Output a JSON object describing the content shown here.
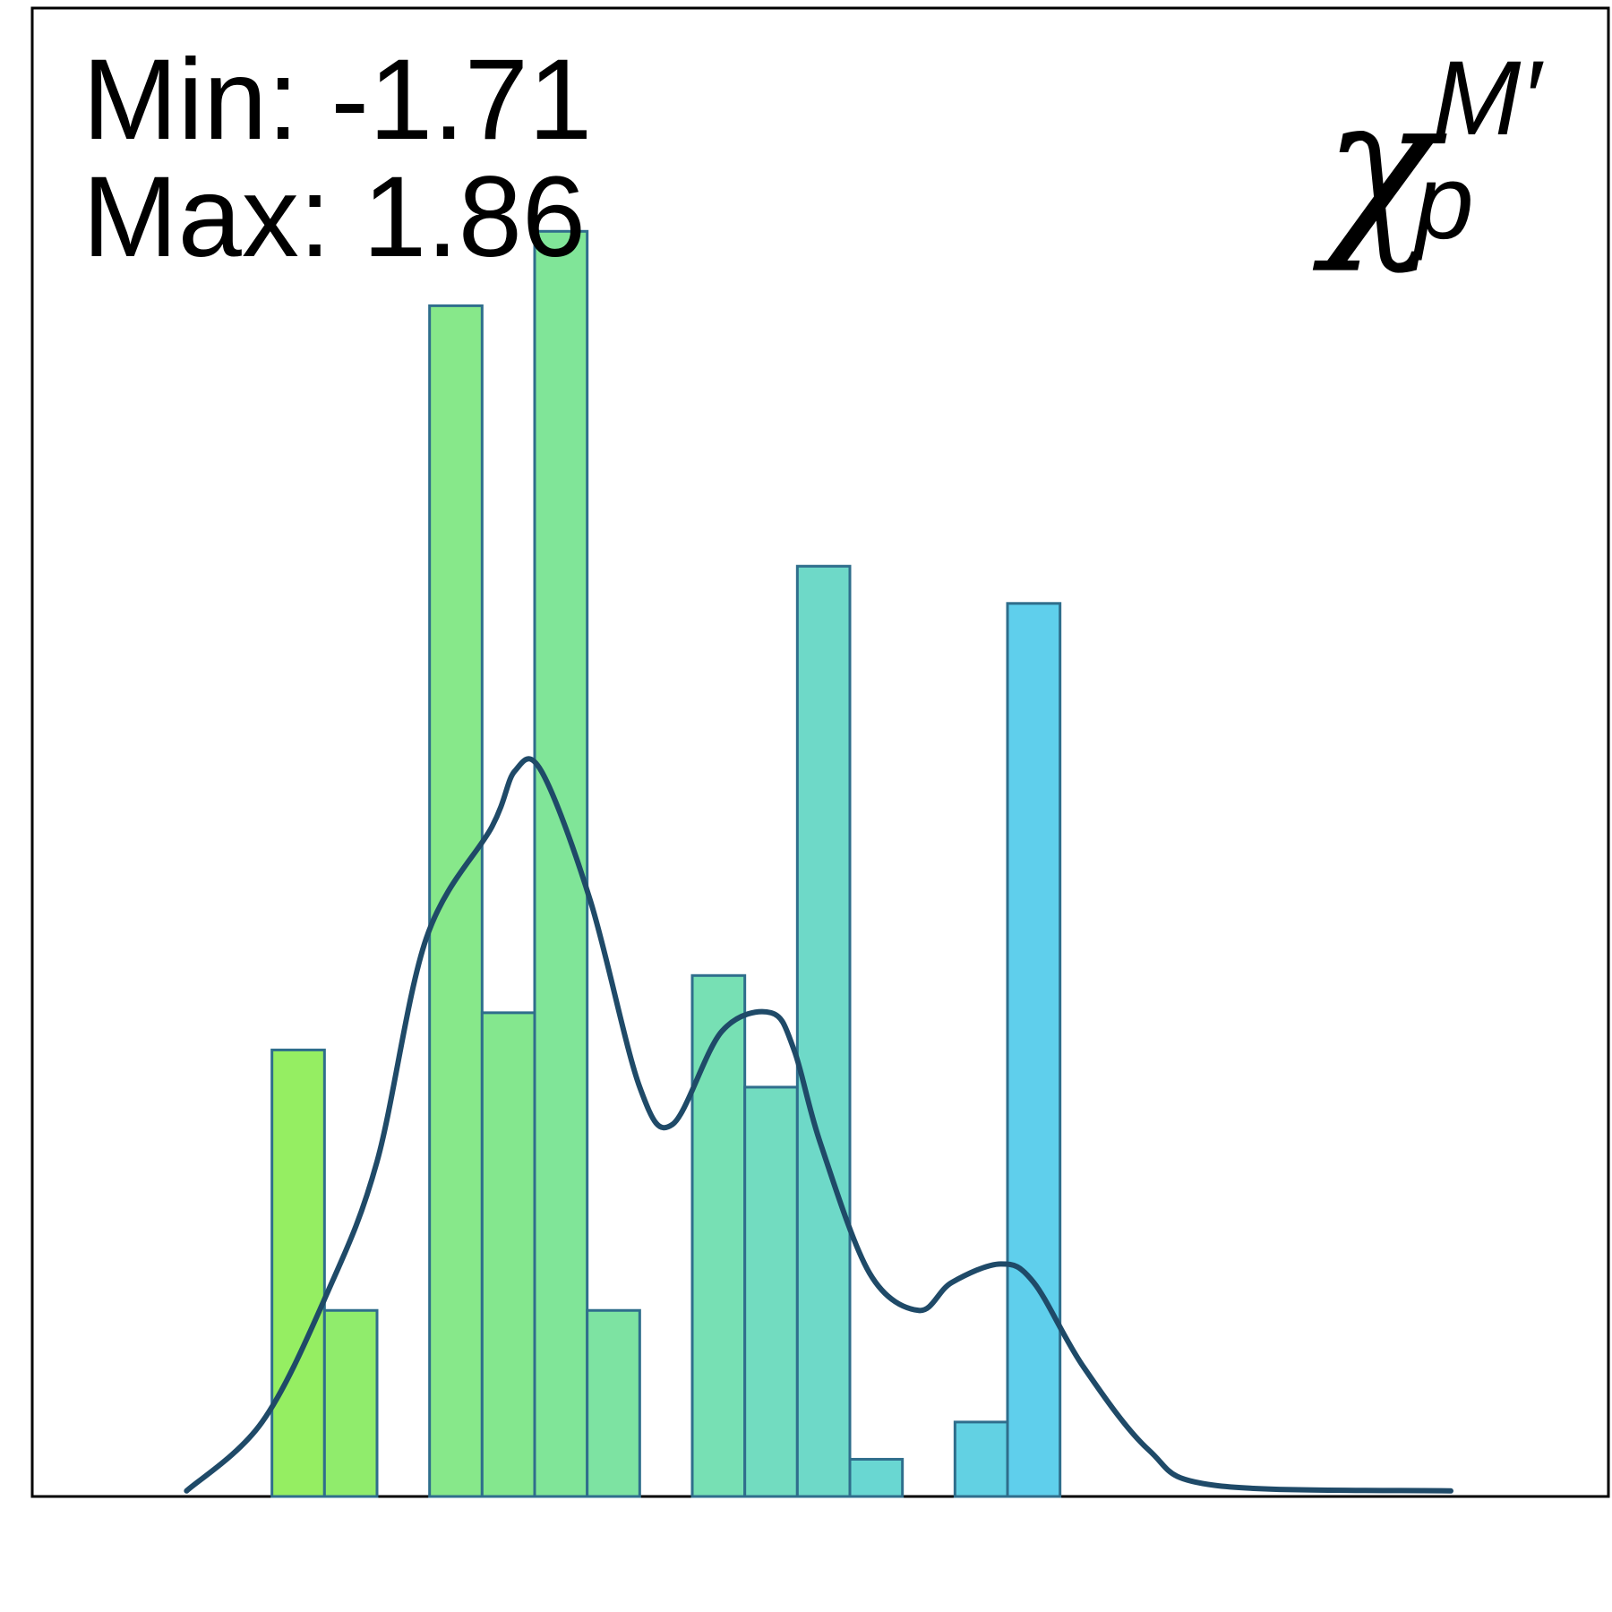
{
  "chart_data": {
    "type": "bar",
    "variant": "histogram with density curve",
    "xlim": [
      -2.2,
      2.6
    ],
    "ylim": [
      0,
      80
    ],
    "grid": false,
    "axes_ticks": false,
    "stats": {
      "min_text": "Min: -1.71",
      "max_text": "Max: 1.86"
    },
    "symbol": {
      "base": "χ",
      "subscript": "p",
      "superscript": "M′"
    },
    "bin_width": 0.16,
    "bins": [
      {
        "x0": -1.47,
        "count": 24,
        "color": "#95ee62"
      },
      {
        "x0": -1.31,
        "count": 10,
        "color": "#90ec6c"
      },
      {
        "x0": -0.99,
        "count": 64,
        "color": "#87e88a"
      },
      {
        "x0": -0.83,
        "count": 26,
        "color": "#84e78e"
      },
      {
        "x0": -0.67,
        "count": 68,
        "color": "#80e598"
      },
      {
        "x0": -0.51,
        "count": 10,
        "color": "#7de3a2"
      },
      {
        "x0": -0.19,
        "count": 28,
        "color": "#77e0b4"
      },
      {
        "x0": -0.03,
        "count": 22,
        "color": "#72dcc0"
      },
      {
        "x0": 0.13,
        "count": 50,
        "color": "#6ed9c8"
      },
      {
        "x0": 0.29,
        "count": 2,
        "color": "#69d7d2"
      },
      {
        "x0": 0.61,
        "count": 4,
        "color": "#62d1e3"
      },
      {
        "x0": 0.77,
        "count": 48,
        "color": "#5fcfec"
      }
    ],
    "bar_edge_color": "#2f6e8c",
    "density_curve": {
      "color": "#1f4a68",
      "x": [
        -1.73,
        -1.5,
        -1.3,
        -1.15,
        -1.0,
        -0.8,
        -0.73,
        -0.65,
        -0.5,
        -0.35,
        -0.25,
        -0.1,
        0.05,
        0.12,
        0.2,
        0.35,
        0.5,
        0.6,
        0.75,
        0.85,
        1.0,
        1.2,
        1.4,
        2.12
      ],
      "y": [
        0.3,
        4,
        11,
        18,
        30,
        36,
        39,
        39,
        32,
        22,
        20,
        25,
        26,
        24,
        19,
        12,
        10,
        11.5,
        12.5,
        11.5,
        7,
        2.5,
        0.6,
        0.3
      ]
    },
    "colors": {
      "frame": "#000000",
      "background": "#ffffff"
    }
  }
}
